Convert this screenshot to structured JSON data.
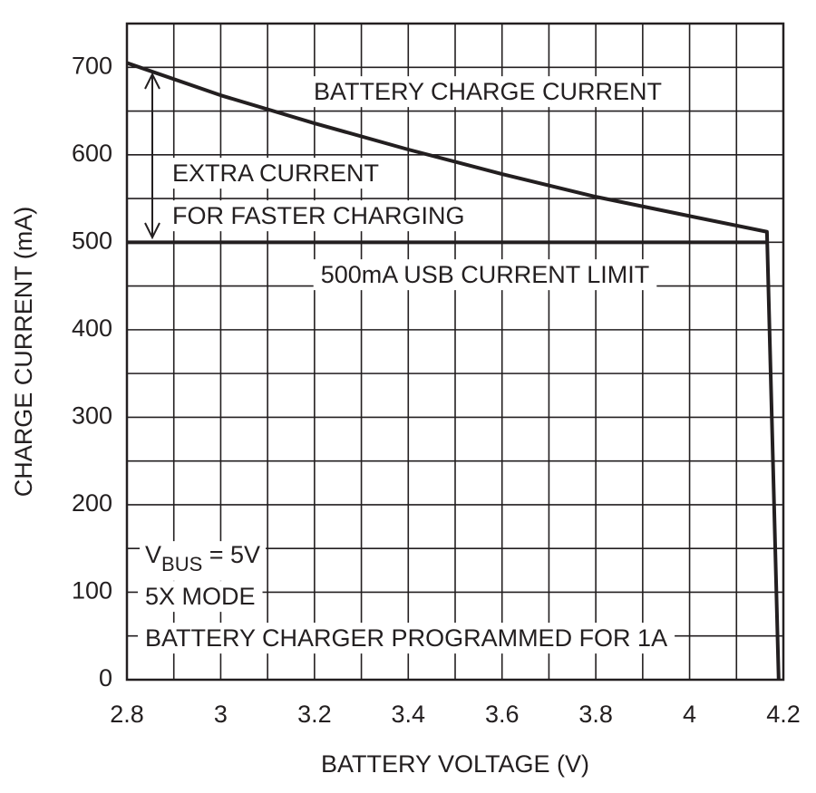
{
  "chart_data": {
    "type": "line",
    "xlabel": "BATTERY VOLTAGE (V)",
    "ylabel": "CHARGE CURRENT (mA)",
    "series": [
      {
        "name": "BATTERY CHARGE CURRENT",
        "color": "#231f20",
        "x": [
          2.8,
          3.0,
          3.2,
          3.4,
          3.6,
          3.8,
          4.0,
          4.165,
          4.19
        ],
        "values": [
          705,
          668,
          636,
          606,
          578,
          552,
          530,
          512,
          0
        ]
      },
      {
        "name": "500mA USB CURRENT LIMIT",
        "color": "#231f20",
        "x": [
          2.8,
          4.165
        ],
        "values": [
          500,
          500
        ]
      }
    ],
    "annotations": [
      "EXTRA CURRENT",
      "FOR FASTER CHARGING"
    ],
    "conditions": {
      "vbus": [
        "V",
        "BUS",
        " = 5V"
      ],
      "mode": "5X MODE",
      "programmed": "BATTERY CHARGER PROGRAMMED FOR 1A"
    },
    "xlim": [
      2.8,
      4.2
    ],
    "ylim": [
      0,
      750
    ],
    "xticks": [
      2.8,
      3,
      3.2,
      3.4,
      3.6,
      3.8,
      4,
      4.2
    ],
    "yticks": [
      0,
      100,
      200,
      300,
      400,
      500,
      600,
      700
    ],
    "xgrid": [
      2.9,
      3.1,
      3.3,
      3.5,
      3.7,
      3.9,
      4.1
    ],
    "ygrid": [
      50,
      150,
      250,
      350,
      450,
      550,
      650
    ],
    "grid": true
  }
}
